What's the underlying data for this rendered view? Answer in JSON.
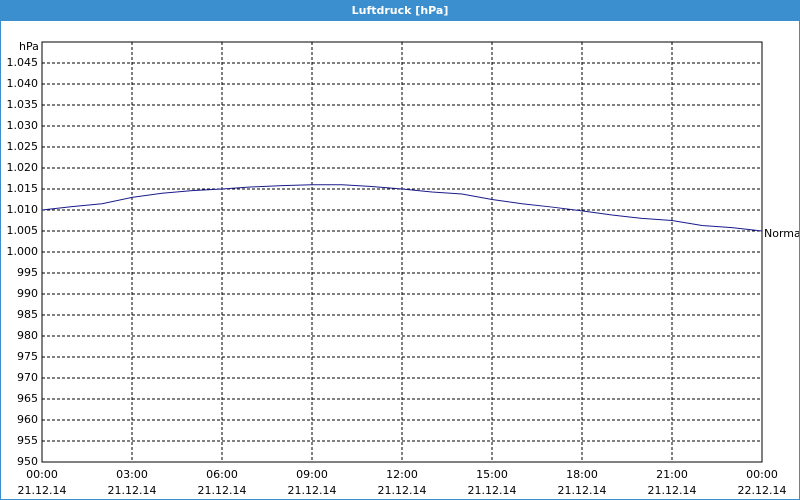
{
  "chart_data": {
    "type": "line",
    "title": "Luftdruck [hPa]",
    "y_label": "hPa",
    "x": [
      0,
      1,
      2,
      3,
      4,
      5,
      6,
      7,
      8,
      9,
      10,
      11,
      12,
      13,
      14,
      15,
      16,
      17,
      18,
      19,
      20,
      21,
      22,
      23,
      24
    ],
    "series": [
      {
        "name": "Normal",
        "color": "#1a1a8c",
        "values": [
          1010,
          1010.8,
          1011.5,
          1013,
          1014,
          1014.6,
          1015,
          1015.5,
          1015.8,
          1016,
          1016,
          1015.6,
          1015,
          1014.3,
          1013.8,
          1012.5,
          1011.5,
          1010.7,
          1009.8,
          1008.8,
          1008,
          1007.5,
          1006.3,
          1005.8,
          1005
        ]
      }
    ],
    "xlim": [
      0,
      24
    ],
    "xticks": [
      {
        "value": 0,
        "label": "00:00\n21.12.14"
      },
      {
        "value": 3,
        "label": "03:00\n21.12.14"
      },
      {
        "value": 6,
        "label": "06:00\n21.12.14"
      },
      {
        "value": 9,
        "label": "09:00\n21.12.14"
      },
      {
        "value": 12,
        "label": "12:00\n21.12.14"
      },
      {
        "value": 15,
        "label": "15:00\n21.12.14"
      },
      {
        "value": 18,
        "label": "18:00\n21.12.14"
      },
      {
        "value": 21,
        "label": "21:00\n21.12.14"
      },
      {
        "value": 24,
        "label": "00:00\n22.12.14"
      }
    ],
    "ylim": [
      950,
      1050
    ],
    "yticks": [
      950,
      955,
      960,
      965,
      970,
      975,
      980,
      985,
      990,
      995,
      {
        "value": 1000,
        "label": "1.000"
      },
      {
        "value": 1005,
        "label": "1.005"
      },
      {
        "value": 1010,
        "label": "1.010"
      },
      {
        "value": 1015,
        "label": "1.015"
      },
      {
        "value": 1020,
        "label": "1.020"
      },
      {
        "value": 1025,
        "label": "1.025"
      },
      {
        "value": 1030,
        "label": "1.030"
      },
      {
        "value": 1035,
        "label": "1.035"
      },
      {
        "value": 1040,
        "label": "1.040"
      },
      {
        "value": 1045,
        "label": "1.045"
      }
    ],
    "grid": true
  }
}
